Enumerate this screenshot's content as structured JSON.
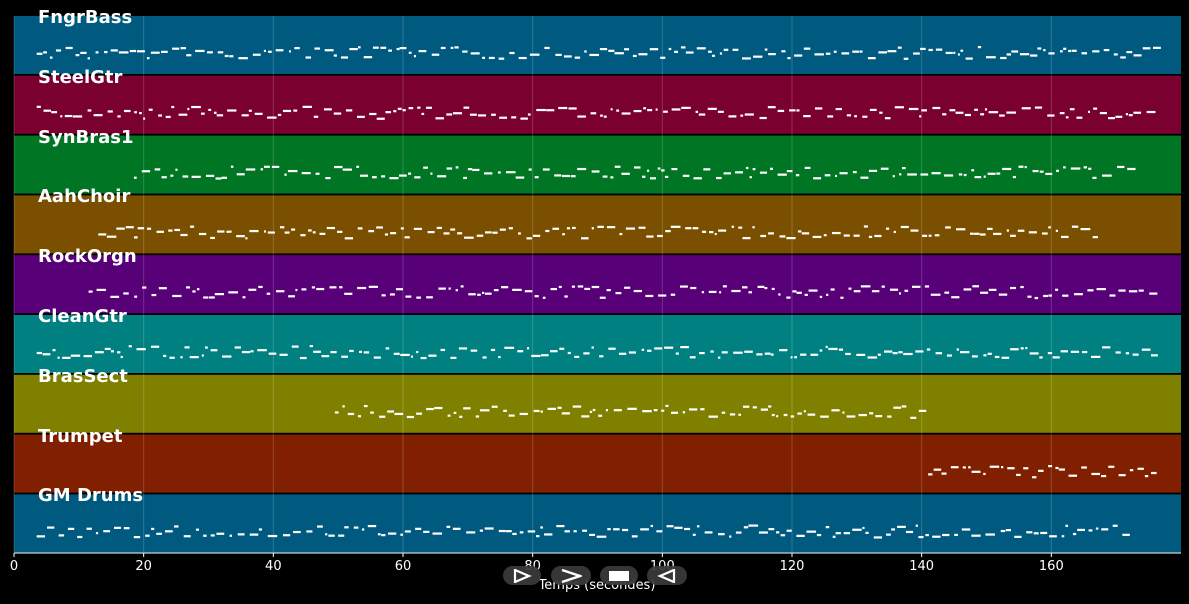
{
  "chart_data": {
    "type": "piano-roll",
    "xlabel": "Temps (secondes)",
    "xlim": [
      0,
      180
    ],
    "x_ticks": [
      0,
      20,
      40,
      60,
      80,
      100,
      120,
      140,
      160
    ],
    "grid": true,
    "tracks": [
      {
        "name": "FngrBass",
        "color": "#005a80",
        "start": 3.5,
        "end": 176
      },
      {
        "name": "SteelGtr",
        "color": "#7a0030",
        "start": 3.5,
        "end": 176
      },
      {
        "name": "SynBras1",
        "color": "#007524",
        "start": 18.5,
        "end": 173
      },
      {
        "name": "AahChoir",
        "color": "#7a5000",
        "start": 13,
        "end": 167
      },
      {
        "name": "RockOrgn",
        "color": "#570078",
        "start": 11.5,
        "end": 176
      },
      {
        "name": "CleanGtr",
        "color": "#008080",
        "start": 3.5,
        "end": 176
      },
      {
        "name": "BrasSect",
        "color": "#808000",
        "start": 49.5,
        "end": 141
      },
      {
        "name": "Trumpet",
        "color": "#802000",
        "start": 141,
        "end": 176
      },
      {
        "name": "GM Drums",
        "color": "#005a80",
        "start": 3.5,
        "end": 172
      }
    ]
  },
  "controls": [
    {
      "name": "play-button",
      "icon": "play-icon"
    },
    {
      "name": "fast-forward-button",
      "icon": "fast-forward-icon"
    },
    {
      "name": "stop-button",
      "icon": "stop-icon"
    },
    {
      "name": "rewind-button",
      "icon": "rewind-icon"
    }
  ]
}
